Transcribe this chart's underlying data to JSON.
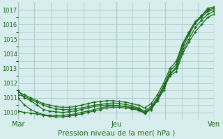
{
  "title": "Pression niveau de la mer( hPa )",
  "bg_color": "#d8eeee",
  "grid_color": "#aacccc",
  "line_color": "#1a6b1a",
  "ylim": [
    1009.5,
    1017.5
  ],
  "yticks": [
    1010,
    1011,
    1012,
    1013,
    1014,
    1015,
    1016,
    1017
  ],
  "xlim": [
    0,
    192
  ],
  "xtick_labels": [
    "Mar",
    "Jeu",
    "Ven"
  ],
  "xtick_pos": [
    0,
    96,
    192
  ],
  "vline_pos": [
    0,
    96,
    192
  ],
  "n_points": 32,
  "series": [
    [
      1011.5,
      1011.0,
      1010.8,
      1010.5,
      1010.2,
      1010.1,
      1010.05,
      1010.0,
      1010.05,
      1010.1,
      1010.2,
      1010.3,
      1010.4,
      1010.45,
      1010.5,
      1010.5,
      1010.45,
      1010.4,
      1010.3,
      1010.2,
      1009.95,
      1010.2,
      1010.8,
      1011.5,
      1012.6,
      1013.1,
      1014.4,
      1015.3,
      1016.1,
      1016.6,
      1017.1,
      1017.2
    ],
    [
      1011.0,
      1010.5,
      1010.2,
      1010.0,
      1009.85,
      1009.8,
      1009.8,
      1009.8,
      1009.85,
      1009.9,
      1010.0,
      1010.1,
      1010.2,
      1010.3,
      1010.4,
      1010.45,
      1010.45,
      1010.4,
      1010.35,
      1010.25,
      1010.0,
      1010.3,
      1010.9,
      1011.8,
      1012.6,
      1013.0,
      1014.2,
      1015.0,
      1015.8,
      1016.3,
      1016.7,
      1016.9
    ],
    [
      1010.1,
      1010.0,
      1009.95,
      1009.9,
      1009.8,
      1009.75,
      1009.7,
      1009.7,
      1009.75,
      1009.8,
      1009.9,
      1010.0,
      1010.1,
      1010.2,
      1010.3,
      1010.35,
      1010.35,
      1010.3,
      1010.25,
      1010.15,
      1009.95,
      1010.2,
      1010.8,
      1011.65,
      1012.5,
      1012.8,
      1014.0,
      1014.8,
      1015.5,
      1016.0,
      1016.5,
      1016.7
    ],
    [
      1011.2,
      1011.1,
      1010.9,
      1010.7,
      1010.5,
      1010.35,
      1010.25,
      1010.2,
      1010.2,
      1010.25,
      1010.3,
      1010.4,
      1010.5,
      1010.55,
      1010.6,
      1010.65,
      1010.6,
      1010.55,
      1010.45,
      1010.3,
      1010.1,
      1010.4,
      1011.0,
      1011.8,
      1012.8,
      1013.3,
      1014.6,
      1015.4,
      1016.1,
      1016.5,
      1016.9,
      1017.0
    ],
    [
      1011.4,
      1011.2,
      1011.0,
      1010.8,
      1010.6,
      1010.5,
      1010.4,
      1010.35,
      1010.35,
      1010.4,
      1010.5,
      1010.6,
      1010.7,
      1010.75,
      1010.8,
      1010.8,
      1010.75,
      1010.7,
      1010.6,
      1010.5,
      1010.3,
      1010.6,
      1011.2,
      1012.0,
      1013.0,
      1013.5,
      1014.7,
      1015.5,
      1016.2,
      1016.6,
      1017.0,
      1017.1
    ]
  ]
}
